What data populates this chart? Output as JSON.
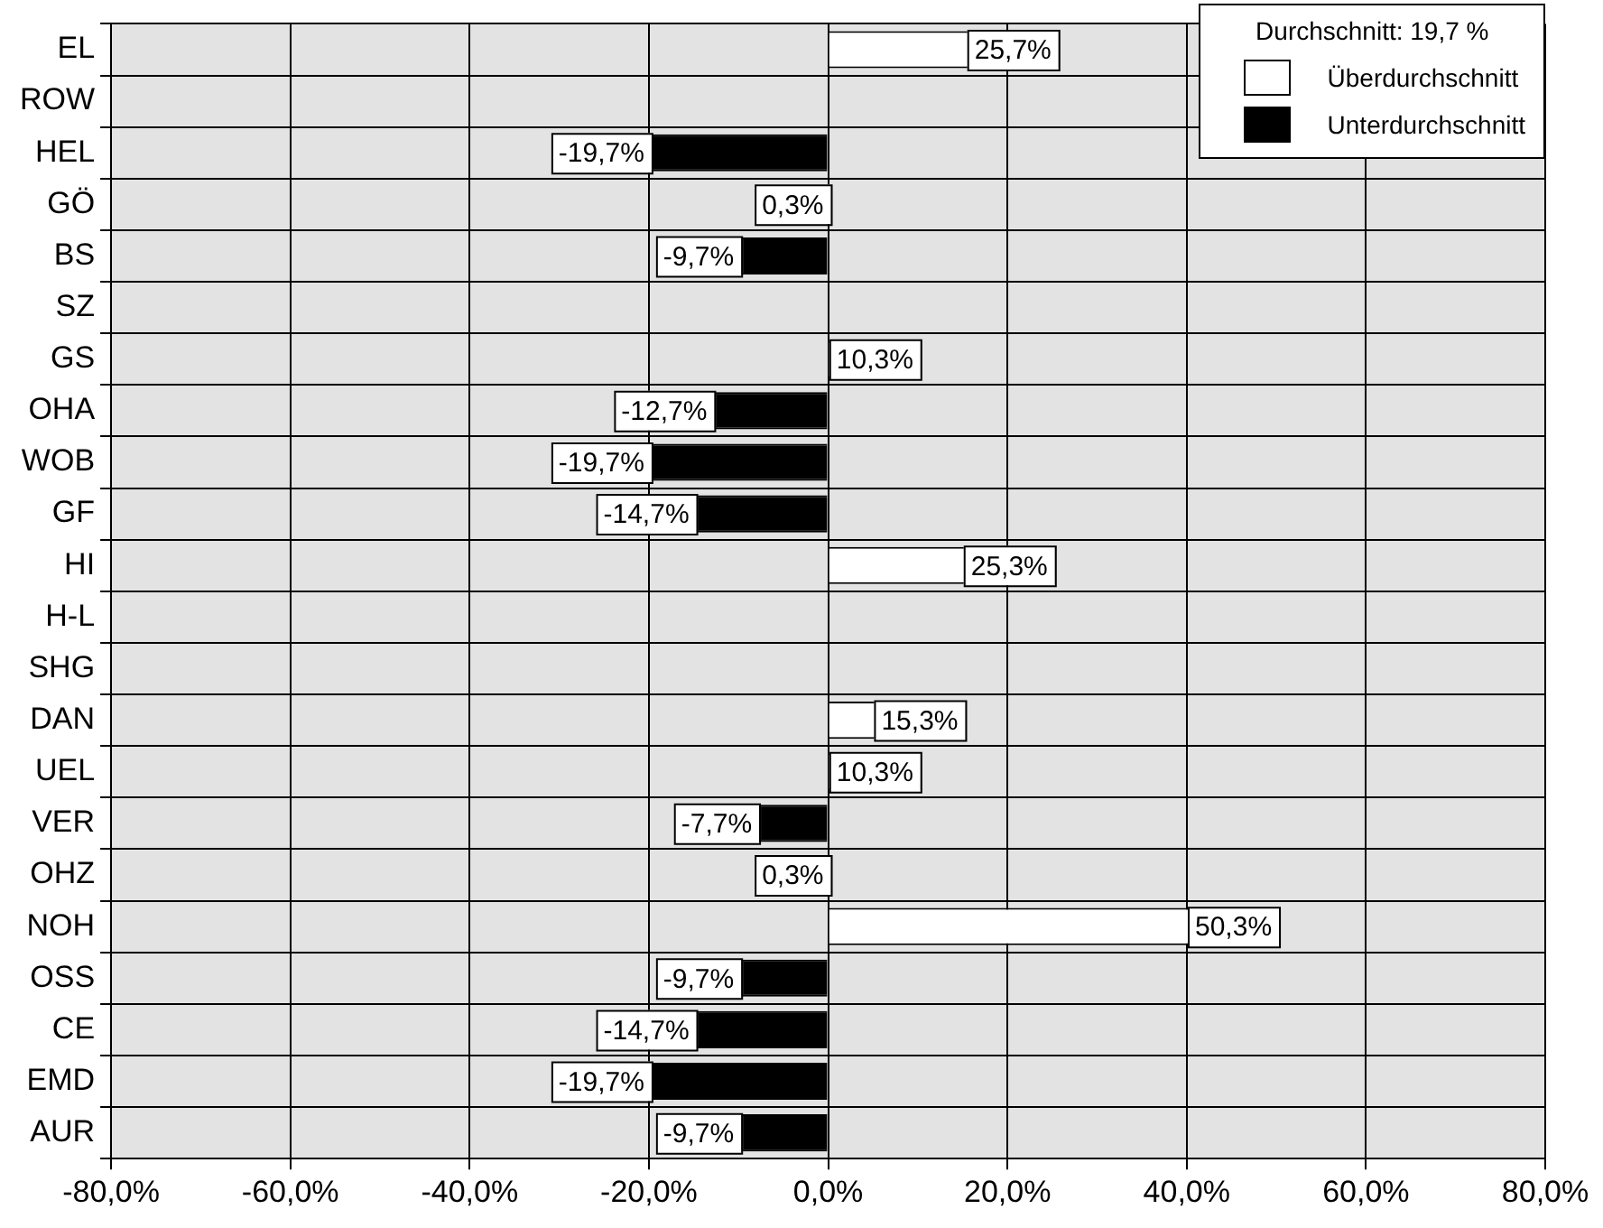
{
  "chart_data": {
    "type": "bar",
    "orientation": "horizontal",
    "legend_title": "Durchschnitt: 19,7 %",
    "categories": [
      "EL",
      "ROW",
      "HEL",
      "GÖ",
      "BS",
      "SZ",
      "GS",
      "OHA",
      "WOB",
      "GF",
      "HI",
      "H-L",
      "SHG",
      "DAN",
      "UEL",
      "VER",
      "OHZ",
      "NOH",
      "OSS",
      "CE",
      "EMD",
      "AUR"
    ],
    "series": [
      {
        "name": "Überdurchschnitt",
        "color": "#ffffff",
        "values": [
          25.7,
          null,
          null,
          0.3,
          null,
          null,
          10.3,
          null,
          null,
          null,
          25.3,
          null,
          null,
          15.3,
          10.3,
          null,
          0.3,
          50.3,
          null,
          null,
          null,
          null
        ],
        "value_labels": [
          "25,7%",
          null,
          null,
          "0,3%",
          null,
          null,
          "10,3%",
          null,
          null,
          null,
          "25,3%",
          null,
          null,
          "15,3%",
          "10,3%",
          null,
          "0,3%",
          "50,3%",
          null,
          null,
          null,
          null
        ]
      },
      {
        "name": "Unterdurchschnitt",
        "color": "#000000",
        "values": [
          null,
          null,
          -19.7,
          null,
          -9.7,
          null,
          null,
          -12.7,
          -19.7,
          -14.7,
          null,
          null,
          null,
          null,
          null,
          -7.7,
          null,
          null,
          -9.7,
          -14.7,
          -19.7,
          -9.7
        ],
        "value_labels": [
          null,
          null,
          "-19,7%",
          null,
          "-9,7%",
          null,
          null,
          "-12,7%",
          "-19,7%",
          "-14,7%",
          null,
          null,
          null,
          null,
          null,
          "-7,7%",
          null,
          null,
          "-9,7%",
          "-14,7%",
          "-19,7%",
          "-9,7%"
        ]
      }
    ],
    "xlim": [
      -80,
      80
    ],
    "xticks": [
      {
        "value": -80,
        "label": "-80,0%"
      },
      {
        "value": -60,
        "label": "-60,0%"
      },
      {
        "value": -40,
        "label": "-40,0%"
      },
      {
        "value": -20,
        "label": "-20,0%"
      },
      {
        "value": 0,
        "label": "0,0%"
      },
      {
        "value": 20,
        "label": "20,0%"
      },
      {
        "value": 40,
        "label": "40,0%"
      },
      {
        "value": 60,
        "label": "60,0%"
      },
      {
        "value": 80,
        "label": "80,0%"
      }
    ],
    "grid": true,
    "legend": "top right"
  }
}
